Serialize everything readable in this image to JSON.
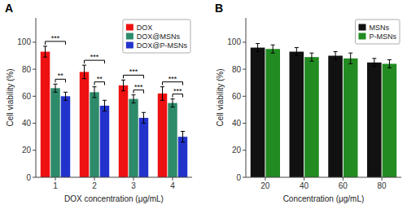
{
  "chart_data": [
    {
      "type": "bar",
      "title": "A",
      "xlabel": "DOX concentration (μg/mL)",
      "ylabel": "Cell viability (%)",
      "categories": [
        "1",
        "2",
        "3",
        "4"
      ],
      "series": [
        {
          "name": "DOX",
          "color": "#ee1111",
          "values": [
            93,
            78,
            68,
            62
          ],
          "errors": [
            4,
            5,
            4,
            5
          ]
        },
        {
          "name": "DOX@MSNs",
          "color": "#2e8b6a",
          "values": [
            66,
            63,
            58,
            55
          ],
          "errors": [
            3,
            4,
            3,
            3
          ]
        },
        {
          "name": "DOX@P-MSNs",
          "color": "#2233cc",
          "values": [
            60,
            53,
            44,
            30
          ],
          "errors": [
            3,
            4,
            4,
            4
          ]
        }
      ],
      "annotations": [
        {
          "text": "***",
          "category": "1",
          "series": [
            "DOX",
            "DOX@P-MSNs"
          ]
        },
        {
          "text": "**",
          "category": "1",
          "series": [
            "DOX@MSNs",
            "DOX@P-MSNs"
          ]
        },
        {
          "text": "***",
          "category": "2",
          "series": [
            "DOX",
            "DOX@P-MSNs"
          ]
        },
        {
          "text": "**",
          "category": "2",
          "series": [
            "DOX@MSNs",
            "DOX@P-MSNs"
          ]
        },
        {
          "text": "***",
          "category": "3",
          "series": [
            "DOX",
            "DOX@P-MSNs"
          ]
        },
        {
          "text": "***",
          "category": "3",
          "series": [
            "DOX@MSNs",
            "DOX@P-MSNs"
          ]
        },
        {
          "text": "***",
          "category": "4",
          "series": [
            "DOX",
            "DOX@P-MSNs"
          ]
        },
        {
          "text": "***",
          "category": "4",
          "series": [
            "DOX@MSNs",
            "DOX@P-MSNs"
          ]
        }
      ],
      "ylim": [
        0,
        118
      ],
      "yticks": [
        0,
        20,
        40,
        60,
        80,
        100
      ],
      "grid": false,
      "legend": "upper-right"
    },
    {
      "type": "bar",
      "title": "B",
      "xlabel": "Concentration (μg/mL)",
      "ylabel": "Cell viability (%)",
      "categories": [
        "20",
        "40",
        "60",
        "80"
      ],
      "series": [
        {
          "name": "MSNs",
          "color": "#111111",
          "values": [
            96,
            93,
            90,
            85
          ],
          "errors": [
            3,
            3,
            3,
            3
          ]
        },
        {
          "name": "P-MSNs",
          "color": "#228b22",
          "values": [
            95,
            89,
            88,
            84
          ],
          "errors": [
            3,
            3,
            4,
            3
          ]
        }
      ],
      "ylim": [
        0,
        118
      ],
      "yticks": [
        0,
        20,
        40,
        60,
        80,
        100
      ],
      "grid": false,
      "legend": "upper-right"
    }
  ]
}
